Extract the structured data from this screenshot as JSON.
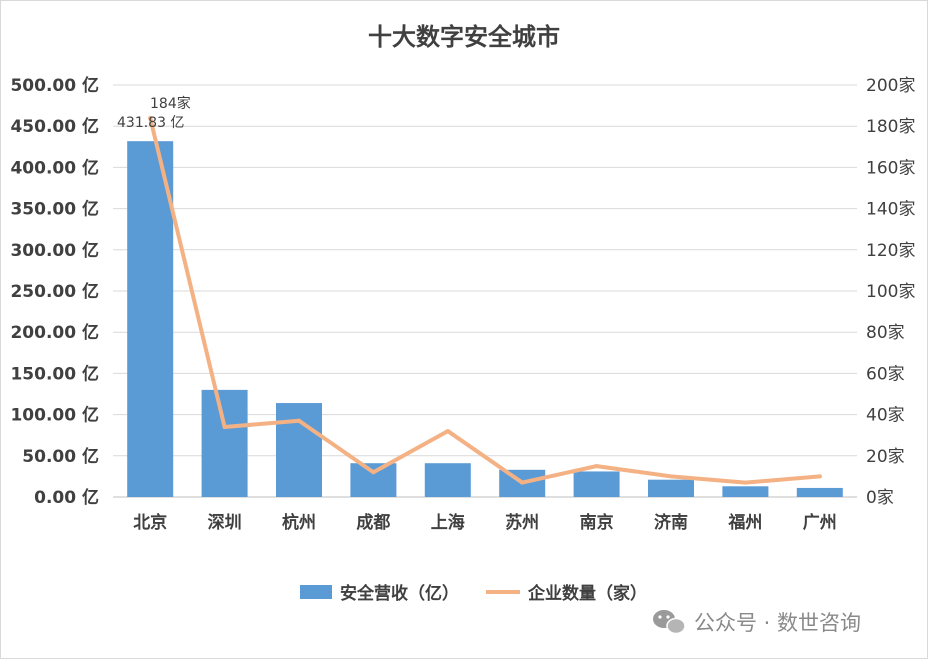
{
  "chart_data": {
    "type": "bar",
    "title": "十大数字安全城市",
    "categories": [
      "北京",
      "深圳",
      "杭州",
      "成都",
      "上海",
      "苏州",
      "南京",
      "济南",
      "福州",
      "广州"
    ],
    "series": [
      {
        "name": "安全营收（亿）",
        "type": "bar",
        "axis": "left",
        "values": [
          431.83,
          130,
          114,
          41,
          41,
          33,
          31,
          21,
          13,
          11
        ]
      },
      {
        "name": "企业数量（家）",
        "type": "line",
        "axis": "right",
        "values": [
          184,
          34,
          37,
          12,
          32,
          7,
          15,
          10,
          7,
          10
        ]
      }
    ],
    "yticks": [
      "0.00 亿",
      "50.00 亿",
      "100.00 亿",
      "150.00 亿",
      "200.00 亿",
      "250.00 亿",
      "300.00 亿",
      "350.00 亿",
      "400.00 亿",
      "450.00 亿",
      "500.00 亿"
    ],
    "y2ticks": [
      "0家",
      "20家",
      "40家",
      "60家",
      "80家",
      "100家",
      "120家",
      "140家",
      "160家",
      "180家",
      "200家"
    ],
    "ylim": [
      0,
      500
    ],
    "y2lim": [
      0,
      200
    ],
    "data_labels": {
      "bar_first": "431.83 亿",
      "line_first": "184家"
    },
    "grid": true,
    "legend_position": "bottom",
    "colors": {
      "bar": "#5b9bd5",
      "line": "#f4b183",
      "grid": "#d9d9d9",
      "text": "#404040"
    }
  },
  "watermark": {
    "text": "公众号 · 数世咨询",
    "icon": "wechat-icon"
  }
}
